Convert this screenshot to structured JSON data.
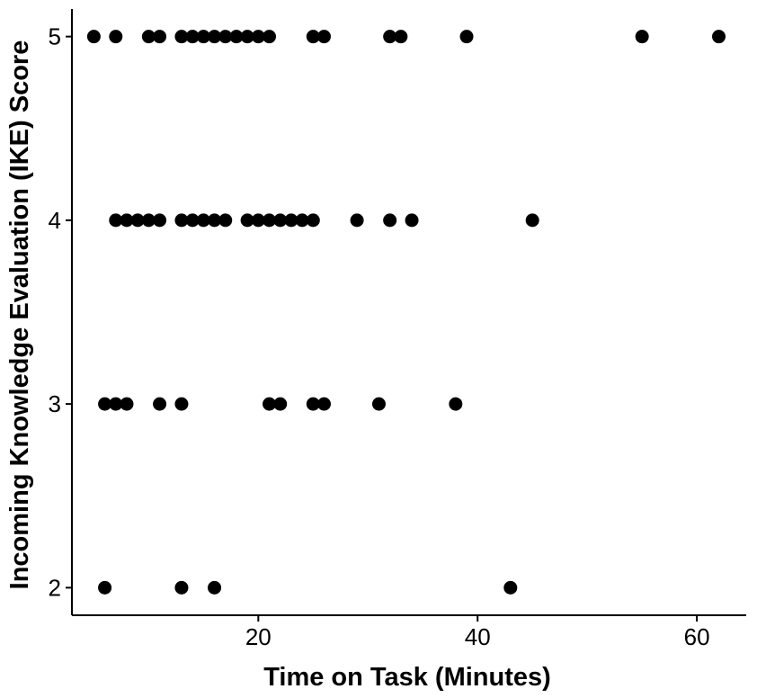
{
  "chart_data": {
    "type": "scatter",
    "title": "",
    "xlabel": "Time on Task (Minutes)",
    "ylabel": "Incoming Knowledge Evaluation (IKE) Score",
    "xlim": [
      3,
      64.5
    ],
    "ylim": [
      1.85,
      5.15
    ],
    "xticks": [
      20,
      40,
      60
    ],
    "yticks": [
      2,
      3,
      4,
      5
    ],
    "grid": false,
    "point_color": "#000000",
    "points": [
      {
        "x": 5,
        "y": 5
      },
      {
        "x": 7,
        "y": 5
      },
      {
        "x": 10,
        "y": 5
      },
      {
        "x": 11,
        "y": 5
      },
      {
        "x": 13,
        "y": 5
      },
      {
        "x": 14,
        "y": 5
      },
      {
        "x": 15,
        "y": 5
      },
      {
        "x": 16,
        "y": 5
      },
      {
        "x": 17,
        "y": 5
      },
      {
        "x": 18,
        "y": 5
      },
      {
        "x": 19,
        "y": 5
      },
      {
        "x": 20,
        "y": 5
      },
      {
        "x": 21,
        "y": 5
      },
      {
        "x": 25,
        "y": 5
      },
      {
        "x": 26,
        "y": 5
      },
      {
        "x": 32,
        "y": 5
      },
      {
        "x": 33,
        "y": 5
      },
      {
        "x": 39,
        "y": 5
      },
      {
        "x": 55,
        "y": 5
      },
      {
        "x": 62,
        "y": 5
      },
      {
        "x": 7,
        "y": 4
      },
      {
        "x": 8,
        "y": 4
      },
      {
        "x": 9,
        "y": 4
      },
      {
        "x": 10,
        "y": 4
      },
      {
        "x": 11,
        "y": 4
      },
      {
        "x": 13,
        "y": 4
      },
      {
        "x": 14,
        "y": 4
      },
      {
        "x": 15,
        "y": 4
      },
      {
        "x": 16,
        "y": 4
      },
      {
        "x": 17,
        "y": 4
      },
      {
        "x": 19,
        "y": 4
      },
      {
        "x": 20,
        "y": 4
      },
      {
        "x": 21,
        "y": 4
      },
      {
        "x": 22,
        "y": 4
      },
      {
        "x": 23,
        "y": 4
      },
      {
        "x": 24,
        "y": 4
      },
      {
        "x": 25,
        "y": 4
      },
      {
        "x": 29,
        "y": 4
      },
      {
        "x": 32,
        "y": 4
      },
      {
        "x": 34,
        "y": 4
      },
      {
        "x": 45,
        "y": 4
      },
      {
        "x": 6,
        "y": 3
      },
      {
        "x": 7,
        "y": 3
      },
      {
        "x": 8,
        "y": 3
      },
      {
        "x": 11,
        "y": 3
      },
      {
        "x": 13,
        "y": 3
      },
      {
        "x": 21,
        "y": 3
      },
      {
        "x": 22,
        "y": 3
      },
      {
        "x": 25,
        "y": 3
      },
      {
        "x": 26,
        "y": 3
      },
      {
        "x": 31,
        "y": 3
      },
      {
        "x": 38,
        "y": 3
      },
      {
        "x": 6,
        "y": 2
      },
      {
        "x": 13,
        "y": 2
      },
      {
        "x": 16,
        "y": 2
      },
      {
        "x": 43,
        "y": 2
      }
    ]
  }
}
